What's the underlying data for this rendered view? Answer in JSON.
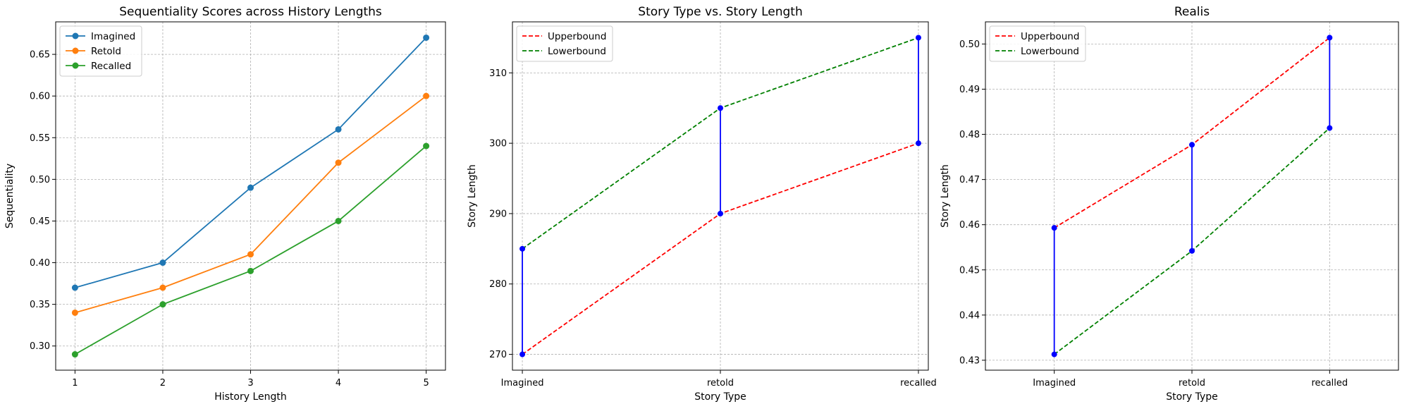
{
  "chart_data": [
    {
      "type": "line",
      "title": "Sequentiality Scores across History Lengths",
      "xlabel": "History Length",
      "ylabel": "Sequentiality",
      "x": [
        1,
        2,
        3,
        4,
        5
      ],
      "xlim": [
        0.78,
        5.22
      ],
      "ylim": [
        0.271,
        0.689
      ],
      "yticks": [
        0.3,
        0.35,
        0.4,
        0.45,
        0.5,
        0.55,
        0.6,
        0.65
      ],
      "ytick_labels": [
        "0.30",
        "0.35",
        "0.40",
        "0.45",
        "0.50",
        "0.55",
        "0.60",
        "0.65"
      ],
      "xtick_labels": [
        "1",
        "2",
        "3",
        "4",
        "5"
      ],
      "grid": true,
      "legend": "top-left",
      "series": [
        {
          "name": "Imagined",
          "color": "#1f77b4",
          "values": [
            0.37,
            0.4,
            0.49,
            0.56,
            0.67
          ]
        },
        {
          "name": "Retold",
          "color": "#ff7f0e",
          "values": [
            0.34,
            0.37,
            0.41,
            0.52,
            0.6
          ]
        },
        {
          "name": "Recalled",
          "color": "#2ca02c",
          "values": [
            0.29,
            0.35,
            0.39,
            0.45,
            0.54
          ]
        }
      ]
    },
    {
      "type": "line",
      "title": "Story Type vs. Story Length",
      "xlabel": "Story Type",
      "ylabel": "Story Length",
      "categories": [
        "Imagined",
        "retold",
        "recalled"
      ],
      "xlim": [
        -0.05,
        2.05
      ],
      "ylim": [
        267.75,
        317.25
      ],
      "yticks": [
        270,
        280,
        290,
        300,
        310
      ],
      "ytick_labels": [
        "270",
        "280",
        "290",
        "300",
        "310"
      ],
      "grid": true,
      "legend": "top-left",
      "series": [
        {
          "name": "Upperbound",
          "color": "#ff0000",
          "style": "dashed",
          "values": [
            270,
            290,
            300
          ]
        },
        {
          "name": "Lowerbound",
          "color": "#008000",
          "style": "dashed",
          "values": [
            285,
            305,
            315
          ]
        }
      ],
      "connector_color": "#0000ff"
    },
    {
      "type": "line",
      "title": "Realis",
      "xlabel": "Story Type",
      "ylabel": "Story Length",
      "categories": [
        "Imagined",
        "retold",
        "recalled"
      ],
      "xlim": [
        -0.5,
        2.5
      ],
      "ylim": [
        0.4278,
        0.5049
      ],
      "yticks": [
        0.43,
        0.44,
        0.45,
        0.46,
        0.47,
        0.48,
        0.49,
        0.5
      ],
      "ytick_labels": [
        "0.43",
        "0.44",
        "0.45",
        "0.46",
        "0.47",
        "0.48",
        "0.49",
        "0.50"
      ],
      "grid": true,
      "legend": "top-left",
      "series": [
        {
          "name": "Upperbound",
          "color": "#ff0000",
          "style": "dashed",
          "values": [
            0.4593,
            0.4777,
            0.5014
          ]
        },
        {
          "name": "Lowerbound",
          "color": "#008000",
          "style": "dashed",
          "values": [
            0.4313,
            0.4542,
            0.4814
          ]
        }
      ],
      "connector_color": "#0000ff"
    }
  ]
}
